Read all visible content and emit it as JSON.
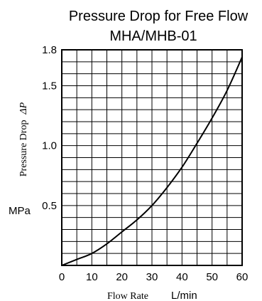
{
  "chart_data": {
    "type": "line",
    "title": "Pressure Drop for Free Flow",
    "subtitle": "MHA/MHB-01",
    "xlabel_name": "Flow Rate",
    "xlabel_unit": "L/min",
    "ylabel_name": "Pressure Drop",
    "ylabel_symbol": "ΔP",
    "ylabel_unit": "MPa",
    "xlim": [
      0,
      60
    ],
    "ylim": [
      0,
      1.8
    ],
    "x_ticks": [
      "0",
      "10",
      "20",
      "30",
      "40",
      "50",
      "60"
    ],
    "y_ticks": [
      {
        "value": 0.5,
        "label": "0.5"
      },
      {
        "value": 1.0,
        "label": "1.0"
      },
      {
        "value": 1.5,
        "label": "1.5"
      },
      {
        "value": 1.8,
        "label": "1.8"
      }
    ],
    "grid": true,
    "grid_x_step": 5,
    "grid_y_step": 0.1,
    "series": [
      {
        "color": "#000000",
        "points": [
          [
            0,
            0
          ],
          [
            5,
            0.05
          ],
          [
            10,
            0.1
          ],
          [
            15,
            0.18
          ],
          [
            20,
            0.28
          ],
          [
            25,
            0.38
          ],
          [
            30,
            0.5
          ],
          [
            35,
            0.65
          ],
          [
            40,
            0.82
          ],
          [
            45,
            1.02
          ],
          [
            50,
            1.23
          ],
          [
            55,
            1.46
          ],
          [
            60,
            1.74
          ]
        ]
      }
    ]
  }
}
